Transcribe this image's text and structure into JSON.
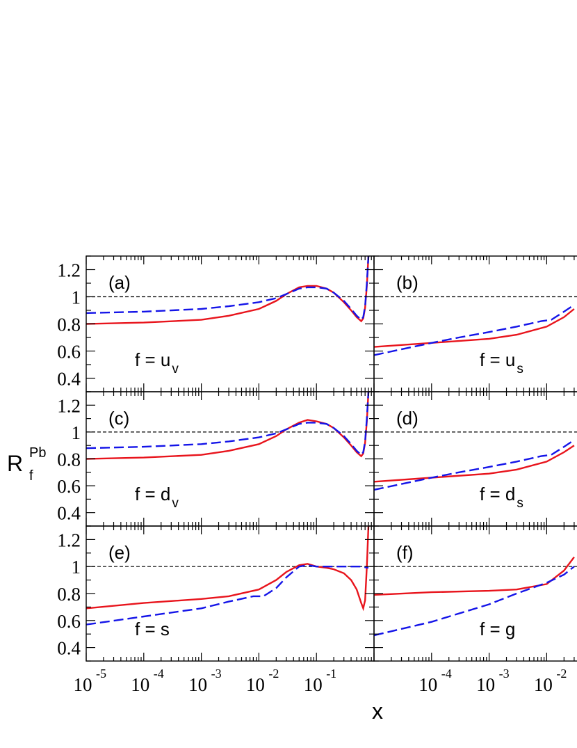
{
  "figure": {
    "ylabel": {
      "main": "R",
      "sub": "f",
      "sup": "Pb"
    },
    "xlabel": "x"
  },
  "chart_data": [
    {
      "type": "line",
      "panel": "(a)",
      "flavor_main": "f = u",
      "flavor_sub": "v",
      "x_scale": "log",
      "xlim": [
        1e-05,
        1
      ],
      "ylim": [
        0.3,
        1.3
      ],
      "reference_line": 1,
      "series": [
        {
          "color": "#e8141c",
          "dash": "solid",
          "x": [
            1e-05,
            0.0001,
            0.001,
            0.003,
            0.01,
            0.02,
            0.03,
            0.05,
            0.07,
            0.1,
            0.15,
            0.2,
            0.3,
            0.4,
            0.5,
            0.6,
            0.65,
            0.7,
            0.75,
            0.8
          ],
          "y": [
            0.8,
            0.81,
            0.83,
            0.86,
            0.91,
            0.97,
            1.02,
            1.07,
            1.08,
            1.08,
            1.06,
            1.03,
            0.96,
            0.9,
            0.85,
            0.82,
            0.84,
            0.92,
            1.08,
            1.3
          ]
        },
        {
          "color": "#1414e8",
          "dash": "dashed",
          "x": [
            1e-05,
            0.0001,
            0.001,
            0.003,
            0.01,
            0.02,
            0.03,
            0.05,
            0.07,
            0.1,
            0.15,
            0.2,
            0.3,
            0.4,
            0.5,
            0.6,
            0.65,
            0.7,
            0.75,
            0.8
          ],
          "y": [
            0.88,
            0.89,
            0.91,
            0.93,
            0.96,
            0.99,
            1.02,
            1.06,
            1.07,
            1.07,
            1.06,
            1.03,
            0.97,
            0.91,
            0.86,
            0.83,
            0.85,
            0.93,
            1.1,
            1.3
          ]
        }
      ]
    },
    {
      "type": "line",
      "panel": "(b)",
      "flavor_main": "f = u",
      "flavor_sub": "s",
      "x_scale": "log",
      "xlim": [
        1e-05,
        1
      ],
      "ylim": [
        0.3,
        1.3
      ],
      "reference_line": 1,
      "series": [
        {
          "color": "#e8141c",
          "dash": "solid",
          "x": [
            1e-05,
            0.0001,
            0.001,
            0.003,
            0.01,
            0.02,
            0.03
          ],
          "y": [
            0.63,
            0.66,
            0.69,
            0.72,
            0.78,
            0.85,
            0.91
          ]
        },
        {
          "color": "#1414e8",
          "dash": "dashed",
          "x": [
            1e-05,
            0.0001,
            0.0003,
            0.001,
            0.003,
            0.008,
            0.012,
            0.02,
            0.03
          ],
          "y": [
            0.57,
            0.66,
            0.7,
            0.74,
            0.78,
            0.82,
            0.83,
            0.89,
            0.94
          ]
        }
      ]
    },
    {
      "type": "line",
      "panel": "(c)",
      "flavor_main": "f = d",
      "flavor_sub": "v",
      "x_scale": "log",
      "xlim": [
        1e-05,
        1
      ],
      "ylim": [
        0.3,
        1.3
      ],
      "reference_line": 1,
      "series": [
        {
          "color": "#e8141c",
          "dash": "solid",
          "x": [
            1e-05,
            0.0001,
            0.001,
            0.003,
            0.01,
            0.02,
            0.03,
            0.05,
            0.07,
            0.1,
            0.15,
            0.2,
            0.3,
            0.4,
            0.5,
            0.6,
            0.65,
            0.7,
            0.75,
            0.8
          ],
          "y": [
            0.8,
            0.81,
            0.83,
            0.86,
            0.91,
            0.97,
            1.02,
            1.07,
            1.09,
            1.08,
            1.06,
            1.03,
            0.96,
            0.9,
            0.85,
            0.82,
            0.84,
            0.92,
            1.08,
            1.3
          ]
        },
        {
          "color": "#1414e8",
          "dash": "dashed",
          "x": [
            1e-05,
            0.0001,
            0.001,
            0.003,
            0.01,
            0.02,
            0.03,
            0.05,
            0.07,
            0.1,
            0.15,
            0.2,
            0.3,
            0.4,
            0.5,
            0.6,
            0.65,
            0.7,
            0.75,
            0.8
          ],
          "y": [
            0.88,
            0.89,
            0.91,
            0.93,
            0.96,
            0.99,
            1.02,
            1.06,
            1.07,
            1.07,
            1.06,
            1.03,
            0.97,
            0.91,
            0.86,
            0.83,
            0.85,
            0.93,
            1.1,
            1.3
          ]
        }
      ]
    },
    {
      "type": "line",
      "panel": "(d)",
      "flavor_main": "f = d",
      "flavor_sub": "s",
      "x_scale": "log",
      "xlim": [
        1e-05,
        1
      ],
      "ylim": [
        0.3,
        1.3
      ],
      "reference_line": 1,
      "series": [
        {
          "color": "#e8141c",
          "dash": "solid",
          "x": [
            1e-05,
            0.0001,
            0.001,
            0.003,
            0.01,
            0.02,
            0.03
          ],
          "y": [
            0.63,
            0.66,
            0.69,
            0.72,
            0.78,
            0.85,
            0.9
          ]
        },
        {
          "color": "#1414e8",
          "dash": "dashed",
          "x": [
            1e-05,
            0.0001,
            0.0003,
            0.001,
            0.003,
            0.008,
            0.012,
            0.02,
            0.03
          ],
          "y": [
            0.57,
            0.66,
            0.7,
            0.74,
            0.78,
            0.82,
            0.83,
            0.89,
            0.94
          ]
        }
      ]
    },
    {
      "type": "line",
      "panel": "(e)",
      "flavor_main": "f = s",
      "flavor_sub": "",
      "x_scale": "log",
      "xlim": [
        1e-05,
        1
      ],
      "ylim": [
        0.3,
        1.3
      ],
      "reference_line": 1,
      "series": [
        {
          "color": "#e8141c",
          "dash": "solid",
          "x": [
            1e-05,
            0.0001,
            0.001,
            0.003,
            0.01,
            0.02,
            0.03,
            0.05,
            0.07,
            0.1,
            0.15,
            0.2,
            0.3,
            0.4,
            0.5,
            0.6,
            0.65,
            0.7,
            0.75,
            0.8
          ],
          "y": [
            0.69,
            0.73,
            0.76,
            0.78,
            0.83,
            0.9,
            0.96,
            1.01,
            1.02,
            1.0,
            0.99,
            0.98,
            0.95,
            0.9,
            0.83,
            0.73,
            0.69,
            0.75,
            1.0,
            1.3
          ]
        },
        {
          "color": "#1414e8",
          "dash": "dashed",
          "x": [
            1e-05,
            0.0001,
            0.001,
            0.003,
            0.008,
            0.012,
            0.02,
            0.03,
            0.05,
            0.07,
            0.1,
            0.2,
            0.4,
            0.6,
            0.8
          ],
          "y": [
            0.57,
            0.63,
            0.69,
            0.74,
            0.78,
            0.78,
            0.84,
            0.92,
            1.0,
            1.01,
            1.0,
            1.0,
            1.0,
            1.0,
            0.99
          ]
        }
      ]
    },
    {
      "type": "line",
      "panel": "(f)",
      "flavor_main": "f = g",
      "flavor_sub": "",
      "x_scale": "log",
      "xlim": [
        1e-05,
        1
      ],
      "ylim": [
        0.3,
        1.3
      ],
      "reference_line": 1,
      "series": [
        {
          "color": "#e8141c",
          "dash": "solid",
          "x": [
            1e-05,
            0.0001,
            0.001,
            0.003,
            0.01,
            0.02,
            0.03
          ],
          "y": [
            0.79,
            0.81,
            0.82,
            0.83,
            0.87,
            0.97,
            1.07
          ]
        },
        {
          "color": "#1414e8",
          "dash": "dashed",
          "x": [
            1e-05,
            0.0001,
            0.001,
            0.003,
            0.01,
            0.02,
            0.03
          ],
          "y": [
            0.49,
            0.59,
            0.72,
            0.8,
            0.88,
            0.94,
            1.0
          ]
        }
      ]
    }
  ],
  "x_ticks": [
    {
      "base": "10",
      "exp": "-5",
      "value": 1e-05
    },
    {
      "base": "10",
      "exp": "-4",
      "value": 0.0001
    },
    {
      "base": "10",
      "exp": "-3",
      "value": 0.001
    },
    {
      "base": "10",
      "exp": "-2",
      "value": 0.01
    },
    {
      "base": "10",
      "exp": "-1",
      "value": 0.1
    }
  ],
  "x_ticks_right": [
    {
      "base": "10",
      "exp": "-4",
      "value": 0.0001
    },
    {
      "base": "10",
      "exp": "-3",
      "value": 0.001
    },
    {
      "base": "10",
      "exp": "-2",
      "value": 0.01
    }
  ],
  "y_ticks": [
    {
      "label": "0.4",
      "value": 0.4
    },
    {
      "label": "0.6",
      "value": 0.6
    },
    {
      "label": "0.8",
      "value": 0.8
    },
    {
      "label": "1",
      "value": 1.0
    },
    {
      "label": "1.2",
      "value": 1.2
    }
  ]
}
